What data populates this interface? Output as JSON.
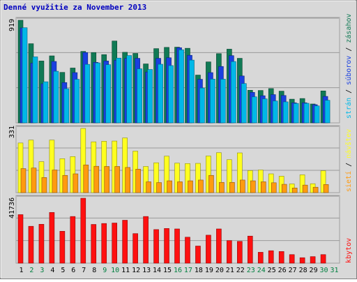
{
  "title": "Denné využitie za November 2013",
  "colors": {
    "background": "#d8d8d8",
    "border": "#a0a0a0",
    "title": "#0000c0",
    "pages": "#00b8e8",
    "files": "#1a40e0",
    "hits": "#117a55",
    "visits": "#ffff20",
    "sites": "#ff9a10",
    "kbytes": "#ff1010",
    "weekday_label": "#000000",
    "weekend_label": "#008040"
  },
  "chart_data": [
    {
      "type": "bar",
      "panel": "hits-files-pages",
      "ymax_label": "919",
      "ylim": [
        0,
        919
      ],
      "legend_words": [
        "strán",
        "/",
        "súborov",
        "/",
        "zásahov"
      ],
      "categories": [
        "1",
        "2",
        "3",
        "4",
        "5",
        "6",
        "7",
        "8",
        "9",
        "10",
        "11",
        "12",
        "13",
        "14",
        "15",
        "16",
        "17",
        "18",
        "19",
        "20",
        "21",
        "22",
        "23",
        "24",
        "25",
        "26",
        "27",
        "28",
        "29",
        "30",
        "31"
      ],
      "series": [
        {
          "name": "zásahov",
          "color": "#117a55",
          "values": [
            919,
            709,
            554,
            600,
            452,
            491,
            640,
            630,
            611,
            733,
            632,
            622,
            528,
            665,
            676,
            678,
            668,
            428,
            546,
            620,
            660,
            578,
            292,
            290,
            307,
            284,
            212,
            218,
            169,
            286,
            0
          ]
        },
        {
          "name": "súborov",
          "color": "#1a40e0",
          "values": [
            850,
            535,
            350,
            550,
            361,
            450,
            630,
            542,
            554,
            560,
            577,
            578,
            455,
            578,
            583,
            673,
            605,
            390,
            450,
            505,
            602,
            420,
            273,
            243,
            253,
            245,
            180,
            180,
            163,
            237,
            0
          ]
        },
        {
          "name": "strán",
          "color": "#00b8e8",
          "values": [
            852,
            591,
            368,
            462,
            306,
            390,
            524,
            537,
            521,
            580,
            603,
            484,
            478,
            525,
            513,
            654,
            562,
            312,
            392,
            391,
            549,
            352,
            233,
            215,
            196,
            188,
            174,
            175,
            152,
            202,
            0
          ]
        }
      ]
    },
    {
      "type": "bar",
      "panel": "visits-sites",
      "ymax_label": "331",
      "ylim": [
        0,
        331
      ],
      "legend_words": [
        "sietí",
        "/",
        "návštev"
      ],
      "categories": [
        "1",
        "2",
        "3",
        "4",
        "5",
        "6",
        "7",
        "8",
        "9",
        "10",
        "11",
        "12",
        "13",
        "14",
        "15",
        "16",
        "17",
        "18",
        "19",
        "20",
        "21",
        "22",
        "23",
        "24",
        "25",
        "26",
        "27",
        "28",
        "29",
        "30",
        "31"
      ],
      "series": [
        {
          "name": "návštev",
          "color": "#ffff20",
          "values": [
            256,
            271,
            160,
            271,
            175,
            186,
            331,
            262,
            265,
            266,
            282,
            214,
            135,
            154,
            188,
            152,
            150,
            151,
            189,
            206,
            170,
            205,
            114,
            117,
            97,
            85,
            45,
            92,
            46,
            113,
            0
          ]
        },
        {
          "name": "sietí",
          "color": "#ff9a10",
          "values": [
            124,
            127,
            78,
            117,
            89,
            97,
            143,
            136,
            135,
            135,
            130,
            121,
            56,
            52,
            61,
            56,
            61,
            65,
            89,
            53,
            53,
            65,
            61,
            56,
            51,
            43,
            24,
            39,
            28,
            42,
            0
          ]
        }
      ]
    },
    {
      "type": "bar",
      "panel": "kbytes",
      "ymax_label": "41736",
      "ylim": [
        0,
        41736
      ],
      "legend_words": [
        "kbytov"
      ],
      "categories": [
        "1",
        "2",
        "3",
        "4",
        "5",
        "6",
        "7",
        "8",
        "9",
        "10",
        "11",
        "12",
        "13",
        "14",
        "15",
        "16",
        "17",
        "18",
        "19",
        "20",
        "21",
        "22",
        "23",
        "24",
        "25",
        "26",
        "27",
        "28",
        "29",
        "30",
        "31"
      ],
      "series": [
        {
          "name": "kbytov",
          "color": "#ff1010",
          "values": [
            31200,
            23700,
            25000,
            32600,
            20500,
            30000,
            41736,
            24900,
            25500,
            25800,
            27600,
            19000,
            30000,
            21600,
            22300,
            22000,
            16700,
            11000,
            18000,
            22000,
            14500,
            14000,
            17400,
            7000,
            8000,
            7500,
            5500,
            3500,
            4200,
            5500,
            0
          ]
        }
      ]
    }
  ],
  "x_axis": {
    "labels": [
      "1",
      "2",
      "3",
      "4",
      "5",
      "6",
      "7",
      "8",
      "9",
      "10",
      "11",
      "12",
      "13",
      "14",
      "15",
      "16",
      "17",
      "18",
      "19",
      "20",
      "21",
      "22",
      "23",
      "24",
      "25",
      "26",
      "27",
      "28",
      "29",
      "30",
      "31"
    ],
    "weekend_days": [
      2,
      3,
      9,
      10,
      16,
      17,
      23,
      24,
      30,
      31
    ]
  }
}
